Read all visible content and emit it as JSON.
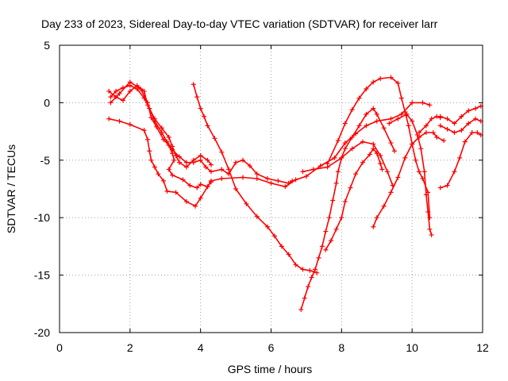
{
  "chart_data": {
    "type": "scatter",
    "title": "Day 233 of 2023, Sidereal Day-to-day VTEC variation (SDTVAR) for receiver larr",
    "xlabel": "GPS time / hours",
    "ylabel": "SDTVAR / TECUs",
    "xlim": [
      0,
      12
    ],
    "ylim": [
      -20,
      5
    ],
    "xticks": [
      "0",
      "2",
      "4",
      "6",
      "8",
      "10",
      "12"
    ],
    "yticks": [
      "5",
      "0",
      "-5",
      "-10",
      "-15",
      "-20"
    ],
    "xtick_values": [
      0,
      2,
      4,
      6,
      8,
      10,
      12
    ],
    "ytick_values": [
      5,
      0,
      -5,
      -10,
      -15,
      -20
    ],
    "grid": true,
    "marker": "plus",
    "color": "#ff0000",
    "series": [
      {
        "points": [
          [
            1.4,
            -1.4
          ],
          [
            1.7,
            -1.6
          ],
          [
            2.0,
            -1.9
          ],
          [
            2.4,
            -2.4
          ],
          [
            2.5,
            -3.2
          ],
          [
            2.55,
            -4.2
          ],
          [
            2.6,
            -5.0
          ],
          [
            2.7,
            -5.6
          ],
          [
            2.8,
            -6.2
          ],
          [
            2.95,
            -6.8
          ],
          [
            3.05,
            -7.7
          ],
          [
            3.3,
            -7.8
          ],
          [
            3.6,
            -8.6
          ],
          [
            3.85,
            -9.0
          ],
          [
            4.0,
            -8.3
          ],
          [
            4.2,
            -7.3
          ],
          [
            4.3,
            -6.8
          ],
          [
            4.6,
            -6.6
          ],
          [
            5.2,
            -6.5
          ],
          [
            5.6,
            -6.6
          ],
          [
            6.0,
            -7.0
          ],
          [
            6.4,
            -7.3
          ],
          [
            6.7,
            -6.7
          ],
          [
            7.0,
            -6.4
          ],
          [
            7.4,
            -5.5
          ],
          [
            7.8,
            -4.8
          ],
          [
            8.1,
            -3.5
          ],
          [
            8.4,
            -2.7
          ],
          [
            8.7,
            -2.0
          ],
          [
            9.0,
            -1.6
          ],
          [
            9.4,
            -1.4
          ],
          [
            9.7,
            -1.0
          ],
          [
            10.0,
            0.0
          ],
          [
            10.3,
            0.0
          ],
          [
            10.5,
            -0.2
          ]
        ]
      },
      {
        "points": [
          [
            1.45,
            0.5
          ],
          [
            1.6,
            1.0
          ],
          [
            1.8,
            1.3
          ],
          [
            2.0,
            1.5
          ],
          [
            2.2,
            1.2
          ],
          [
            2.4,
            0.4
          ],
          [
            2.55,
            -0.5
          ],
          [
            2.7,
            -1.6
          ],
          [
            2.9,
            -2.6
          ],
          [
            3.05,
            -3.4
          ],
          [
            3.2,
            -4.1
          ],
          [
            3.4,
            -4.7
          ],
          [
            3.6,
            -5.2
          ],
          [
            3.8,
            -5.2
          ],
          [
            4.0,
            -5.0
          ],
          [
            4.15,
            -5.6
          ],
          [
            4.3,
            -6.0
          ],
          [
            4.6,
            -5.8
          ],
          [
            4.8,
            -6.2
          ],
          [
            5.0,
            -5.2
          ],
          [
            5.2,
            -5.0
          ],
          [
            5.4,
            -5.5
          ],
          [
            5.6,
            -6.2
          ],
          [
            5.9,
            -6.6
          ],
          [
            6.2,
            -6.8
          ],
          [
            6.5,
            -7.0
          ],
          [
            6.6,
            -6.8
          ]
        ]
      },
      {
        "points": [
          [
            1.4,
            1.0
          ],
          [
            1.6,
            0.5
          ],
          [
            1.8,
            0.2
          ],
          [
            2.0,
            1.0
          ],
          [
            2.2,
            1.5
          ],
          [
            2.4,
            1.0
          ],
          [
            2.5,
            -0.2
          ],
          [
            2.7,
            -1.4
          ],
          [
            2.9,
            -2.2
          ],
          [
            3.1,
            -3.0
          ],
          [
            3.2,
            -3.8
          ],
          [
            3.3,
            -4.6
          ],
          [
            3.4,
            -5.2
          ],
          [
            3.6,
            -5.6
          ],
          [
            3.8,
            -5.0
          ],
          [
            4.0,
            -4.6
          ],
          [
            4.2,
            -5.0
          ],
          [
            4.3,
            -5.4
          ]
        ]
      },
      {
        "points": [
          [
            1.45,
            0.0
          ],
          [
            1.7,
            0.8
          ],
          [
            2.0,
            1.8
          ],
          [
            2.3,
            1.2
          ],
          [
            2.5,
            0.0
          ],
          [
            2.6,
            -1.3
          ],
          [
            2.75,
            -2.1
          ],
          [
            2.95,
            -3.2
          ],
          [
            3.1,
            -3.7
          ],
          [
            3.2,
            -4.4
          ],
          [
            3.25,
            -5.0
          ],
          [
            3.1,
            -5.8
          ],
          [
            3.2,
            -6.3
          ],
          [
            3.5,
            -6.7
          ],
          [
            3.7,
            -7.2
          ],
          [
            3.9,
            -7.4
          ],
          [
            4.0,
            -7.1
          ],
          [
            4.2,
            -7.3
          ],
          [
            4.3,
            -6.9
          ]
        ]
      },
      {
        "points": [
          [
            3.8,
            1.6
          ],
          [
            3.9,
            0.5
          ],
          [
            4.0,
            -0.5
          ],
          [
            4.1,
            -1.2
          ],
          [
            4.2,
            -2.0
          ],
          [
            4.4,
            -3.1
          ],
          [
            4.6,
            -4.3
          ],
          [
            4.8,
            -5.8
          ],
          [
            5.0,
            -7.5
          ],
          [
            5.3,
            -8.8
          ],
          [
            5.6,
            -9.9
          ],
          [
            5.9,
            -10.8
          ],
          [
            6.1,
            -11.6
          ],
          [
            6.3,
            -12.5
          ],
          [
            6.5,
            -13.2
          ],
          [
            6.7,
            -14.1
          ],
          [
            6.9,
            -14.5
          ],
          [
            7.1,
            -14.6
          ],
          [
            7.3,
            -14.8
          ]
        ]
      },
      {
        "points": [
          [
            6.85,
            -18.0
          ],
          [
            6.95,
            -17.0
          ],
          [
            7.05,
            -16.0
          ],
          [
            7.15,
            -15.2
          ],
          [
            7.25,
            -14.5
          ],
          [
            7.35,
            -13.5
          ],
          [
            7.45,
            -12.5
          ],
          [
            7.55,
            -11.2
          ],
          [
            7.65,
            -10.0
          ],
          [
            7.75,
            -8.5
          ],
          [
            7.85,
            -7.0
          ],
          [
            7.9,
            -6.0
          ],
          [
            8.0,
            -4.8
          ],
          [
            8.1,
            -4.0
          ],
          [
            8.3,
            -3.0
          ],
          [
            8.5,
            -2.0
          ],
          [
            8.7,
            -1.0
          ],
          [
            8.9,
            -0.5
          ],
          [
            9.0,
            -1.0
          ],
          [
            9.2,
            -2.2
          ],
          [
            9.4,
            -3.5
          ],
          [
            9.5,
            -4.2
          ]
        ]
      },
      {
        "points": [
          [
            7.55,
            -12.8
          ],
          [
            7.7,
            -12.0
          ],
          [
            7.85,
            -11.0
          ],
          [
            8.0,
            -10.0
          ],
          [
            8.1,
            -8.6
          ],
          [
            8.25,
            -7.4
          ],
          [
            8.4,
            -6.2
          ],
          [
            8.6,
            -5.2
          ],
          [
            8.8,
            -4.5
          ],
          [
            8.9,
            -4.0
          ],
          [
            9.0,
            -4.4
          ],
          [
            9.1,
            -5.3
          ],
          [
            9.15,
            -5.8
          ]
        ]
      },
      {
        "points": [
          [
            8.9,
            -10.8
          ],
          [
            9.0,
            -10.0
          ],
          [
            9.2,
            -9.0
          ],
          [
            9.4,
            -7.8
          ],
          [
            9.6,
            -6.5
          ],
          [
            9.8,
            -4.8
          ],
          [
            10.0,
            -3.6
          ],
          [
            10.2,
            -3.0
          ],
          [
            10.4,
            -2.6
          ],
          [
            10.6,
            -2.6
          ],
          [
            10.7,
            -3.0
          ],
          [
            10.9,
            -3.3
          ]
        ]
      },
      {
        "points": [
          [
            7.6,
            -5.3
          ],
          [
            7.9,
            -3.3
          ],
          [
            8.1,
            -1.8
          ],
          [
            8.3,
            -0.6
          ],
          [
            8.5,
            0.4
          ],
          [
            8.7,
            1.2
          ],
          [
            8.9,
            1.8
          ],
          [
            9.1,
            2.1
          ],
          [
            9.4,
            2.2
          ],
          [
            9.6,
            1.7
          ],
          [
            9.7,
            0.4
          ],
          [
            9.8,
            -0.8
          ],
          [
            9.9,
            -2.0
          ],
          [
            10.0,
            -3.6
          ],
          [
            10.1,
            -5.0
          ],
          [
            10.2,
            -6.0
          ],
          [
            10.3,
            -6.6
          ],
          [
            10.45,
            -7.8
          ],
          [
            10.5,
            -10.0
          ]
        ]
      },
      {
        "points": [
          [
            6.9,
            -6.0
          ],
          [
            7.2,
            -5.8
          ],
          [
            7.6,
            -5.6
          ],
          [
            8.0,
            -4.8
          ],
          [
            8.3,
            -4.0
          ],
          [
            8.6,
            -3.4
          ],
          [
            8.9,
            -3.6
          ],
          [
            9.1,
            -4.6
          ],
          [
            9.3,
            -6.0
          ],
          [
            9.45,
            -7.2
          ]
        ]
      },
      {
        "points": [
          [
            10.2,
            -2.6
          ],
          [
            10.4,
            -2.0
          ],
          [
            10.55,
            -1.4
          ],
          [
            10.7,
            -1.2
          ],
          [
            10.8,
            -1.3
          ]
        ]
      },
      {
        "points": [
          [
            9.35,
            -1.8
          ],
          [
            9.6,
            -1.4
          ],
          [
            9.85,
            -1.0
          ],
          [
            10.0,
            -1.6
          ],
          [
            10.15,
            -2.8
          ],
          [
            10.25,
            -4.0
          ],
          [
            10.35,
            -6.0
          ],
          [
            10.4,
            -8.0
          ],
          [
            10.45,
            -9.5
          ],
          [
            10.5,
            -11.0
          ],
          [
            10.55,
            -11.5
          ]
        ]
      },
      {
        "points": [
          [
            10.8,
            -7.4
          ],
          [
            11.0,
            -7.2
          ],
          [
            11.2,
            -6.0
          ],
          [
            11.35,
            -4.8
          ],
          [
            11.5,
            -3.4
          ],
          [
            11.7,
            -2.6
          ],
          [
            11.85,
            -2.6
          ],
          [
            11.95,
            -2.8
          ]
        ]
      },
      {
        "points": [
          [
            10.8,
            -1.2
          ],
          [
            11.0,
            -1.4
          ],
          [
            11.2,
            -1.8
          ],
          [
            11.4,
            -1.2
          ],
          [
            11.6,
            -0.7
          ],
          [
            11.8,
            -0.5
          ],
          [
            11.95,
            -0.3
          ]
        ]
      },
      {
        "points": [
          [
            10.8,
            -2.0
          ],
          [
            11.0,
            -2.3
          ],
          [
            11.2,
            -2.6
          ],
          [
            11.4,
            -2.4
          ],
          [
            11.6,
            -1.8
          ],
          [
            11.8,
            -1.4
          ],
          [
            11.95,
            -1.6
          ]
        ]
      }
    ]
  }
}
